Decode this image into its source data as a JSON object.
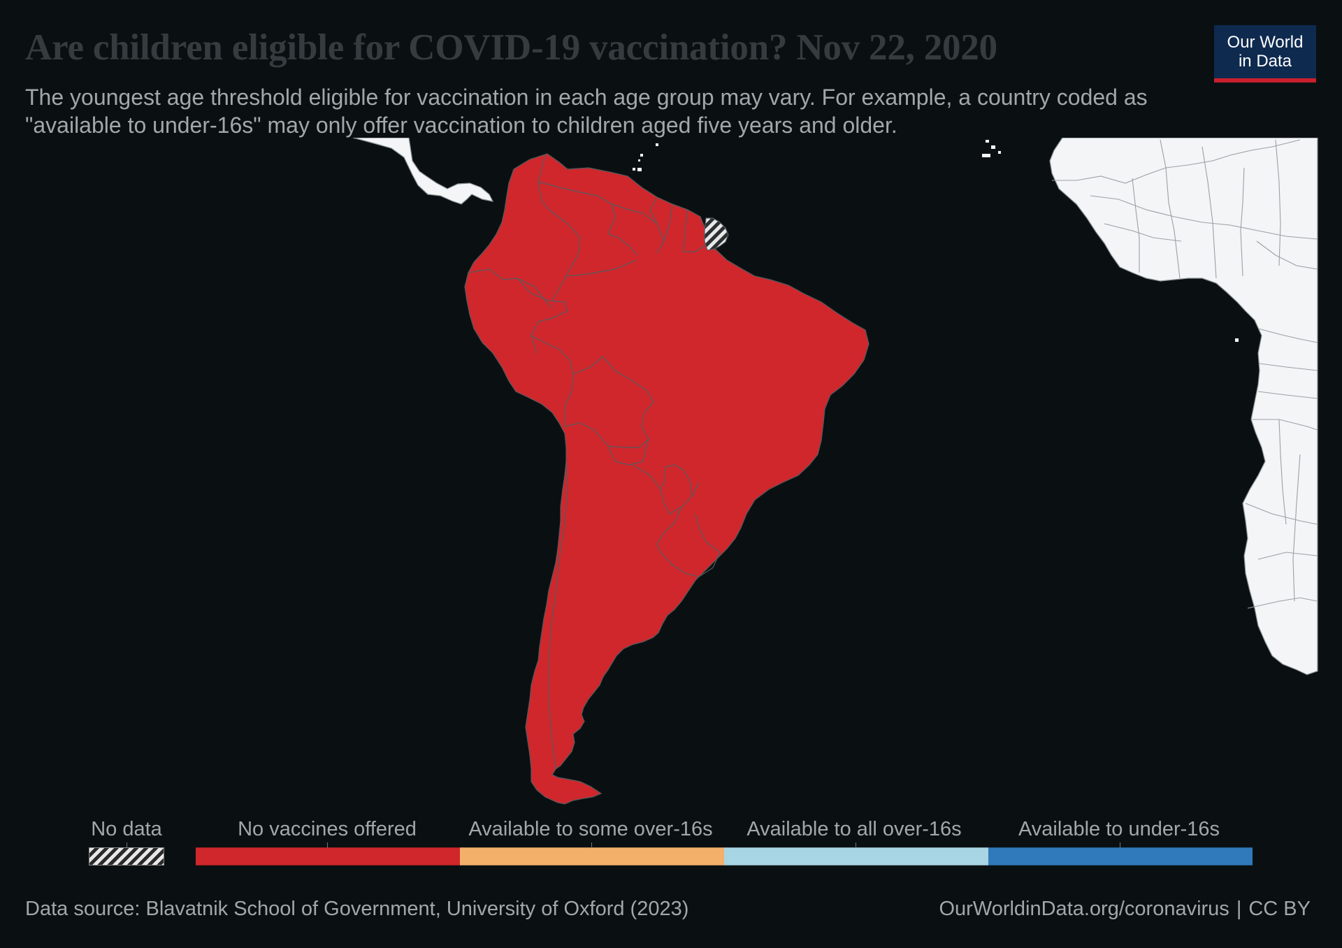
{
  "header": {
    "title": "Are children eligible for COVID-19 vaccination? Nov 22, 2020",
    "subtitle": "The youngest age threshold eligible for vaccination in each age group may vary. For example, a country coded as \"available to under-16s\" may only offer vaccination to children aged five years and older."
  },
  "logo": {
    "line1": "Our World",
    "line2": "in Data"
  },
  "map": {
    "region": "South America",
    "no_data_country": "French Guiana",
    "colors": {
      "no_vaccines": "#cf272c",
      "land_without_data": "#f3f5f6",
      "border": "#555a5e",
      "ocean": "#0a1012"
    }
  },
  "legend": {
    "no_data_label": "No data",
    "categories": [
      {
        "label": "No vaccines offered",
        "color": "#cf272c"
      },
      {
        "label": "Available to some over-16s",
        "color": "#f2b06b"
      },
      {
        "label": "Available to all over-16s",
        "color": "#a7d5e3"
      },
      {
        "label": "Available to under-16s",
        "color": "#3079ba"
      }
    ]
  },
  "footer": {
    "source": "Data source: Blavatnik School of Government, University of Oxford (2023)",
    "url": "OurWorldinData.org/coronavirus",
    "separator": "|",
    "license": "CC BY"
  }
}
